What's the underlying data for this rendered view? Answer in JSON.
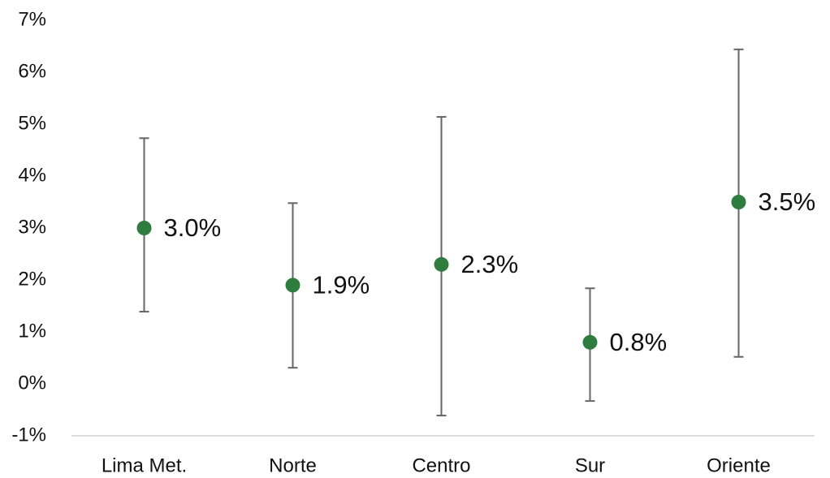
{
  "chart_data": {
    "type": "errorbar",
    "categories": [
      "Lima Met.",
      "Norte",
      "Centro",
      "Sur",
      "Oriente"
    ],
    "values": [
      3.0,
      1.9,
      2.3,
      0.8,
      3.5
    ],
    "value_labels": [
      "3.0%",
      "1.9%",
      "2.3%",
      "0.8%",
      "3.5%"
    ],
    "lower": [
      1.39,
      0.31,
      -0.61,
      -0.33,
      0.52
    ],
    "upper": [
      4.73,
      3.48,
      5.14,
      1.84,
      6.44
    ],
    "color": "#2e7d3e",
    "error_color": "#666666",
    "ylim": [
      -1,
      7
    ],
    "yticks": [
      {
        "value": -1,
        "label": "-1%"
      },
      {
        "value": 0,
        "label": "0%"
      },
      {
        "value": 1,
        "label": "1%"
      },
      {
        "value": 2,
        "label": "2%"
      },
      {
        "value": 3,
        "label": "3%"
      },
      {
        "value": 4,
        "label": "4%"
      },
      {
        "value": 5,
        "label": "5%"
      },
      {
        "value": 6,
        "label": "6%"
      },
      {
        "value": 7,
        "label": "7%"
      }
    ],
    "grid": false
  }
}
